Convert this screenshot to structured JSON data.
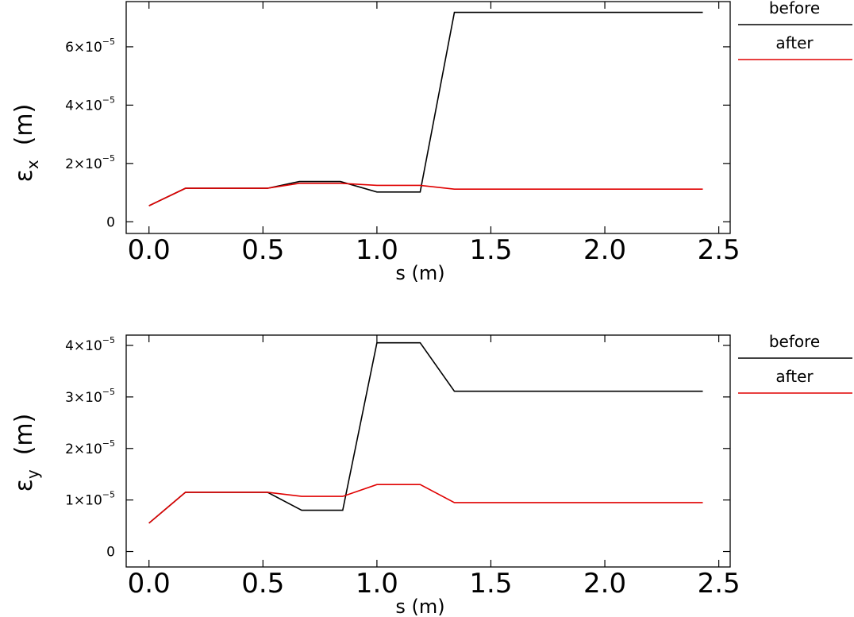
{
  "chart_data": [
    {
      "type": "line",
      "xlabel": "s (m)",
      "ylabel": {
        "symbol": "ε",
        "sub": "x",
        "unit": "(m)"
      },
      "xlim": [
        -0.1,
        2.55
      ],
      "ylim": [
        -4e-06,
        7.55e-05
      ],
      "xticks": [
        {
          "value": 0.0,
          "label": "0.0"
        },
        {
          "value": 0.5,
          "label": "0.5"
        },
        {
          "value": 1.0,
          "label": "1.0"
        },
        {
          "value": 1.5,
          "label": "1.5"
        },
        {
          "value": 2.0,
          "label": "2.0"
        },
        {
          "value": 2.5,
          "label": "2.5"
        }
      ],
      "yticks": [
        {
          "value": 0,
          "mant": "0",
          "exp": ""
        },
        {
          "value": 2e-05,
          "mant": "2×10",
          "exp": "−5"
        },
        {
          "value": 4e-05,
          "mant": "4×10",
          "exp": "−5"
        },
        {
          "value": 6e-05,
          "mant": "6×10",
          "exp": "−5"
        }
      ],
      "series": [
        {
          "name": "before",
          "color": "#000000",
          "x": [
            0.0,
            0.16,
            0.52,
            0.66,
            0.84,
            1.0,
            1.19,
            1.34,
            2.43
          ],
          "y": [
            5.5e-06,
            1.15e-05,
            1.15e-05,
            1.38e-05,
            1.38e-05,
            1.02e-05,
            1.02e-05,
            7.18e-05,
            7.18e-05
          ]
        },
        {
          "name": "after",
          "color": "#e00000",
          "x": [
            0.0,
            0.16,
            0.52,
            0.66,
            0.84,
            1.0,
            1.19,
            1.34,
            2.43
          ],
          "y": [
            5.5e-06,
            1.15e-05,
            1.15e-05,
            1.32e-05,
            1.32e-05,
            1.25e-05,
            1.25e-05,
            1.12e-05,
            1.12e-05
          ]
        }
      ]
    },
    {
      "type": "line",
      "xlabel": "s (m)",
      "ylabel": {
        "symbol": "ε",
        "sub": "y",
        "unit": "(m)"
      },
      "xlim": [
        -0.1,
        2.55
      ],
      "ylim": [
        -3e-06,
        4.2e-05
      ],
      "xticks": [
        {
          "value": 0.0,
          "label": "0.0"
        },
        {
          "value": 0.5,
          "label": "0.5"
        },
        {
          "value": 1.0,
          "label": "1.0"
        },
        {
          "value": 1.5,
          "label": "1.5"
        },
        {
          "value": 2.0,
          "label": "2.0"
        },
        {
          "value": 2.5,
          "label": "2.5"
        }
      ],
      "yticks": [
        {
          "value": 0,
          "mant": "0",
          "exp": ""
        },
        {
          "value": 1e-05,
          "mant": "1×10",
          "exp": "−5"
        },
        {
          "value": 2e-05,
          "mant": "2×10",
          "exp": "−5"
        },
        {
          "value": 3e-05,
          "mant": "3×10",
          "exp": "−5"
        },
        {
          "value": 4e-05,
          "mant": "4×10",
          "exp": "−5"
        }
      ],
      "series": [
        {
          "name": "before",
          "color": "#000000",
          "x": [
            0.0,
            0.16,
            0.52,
            0.67,
            0.85,
            1.0,
            1.19,
            1.34,
            2.43
          ],
          "y": [
            5.5e-06,
            1.15e-05,
            1.15e-05,
            8e-06,
            8e-06,
            4.05e-05,
            4.05e-05,
            3.11e-05,
            3.11e-05
          ]
        },
        {
          "name": "after",
          "color": "#e00000",
          "x": [
            0.0,
            0.16,
            0.52,
            0.67,
            0.85,
            1.0,
            1.19,
            1.34,
            2.43
          ],
          "y": [
            5.5e-06,
            1.15e-05,
            1.15e-05,
            1.07e-05,
            1.07e-05,
            1.3e-05,
            1.3e-05,
            9.5e-06,
            9.5e-06
          ]
        }
      ]
    }
  ]
}
